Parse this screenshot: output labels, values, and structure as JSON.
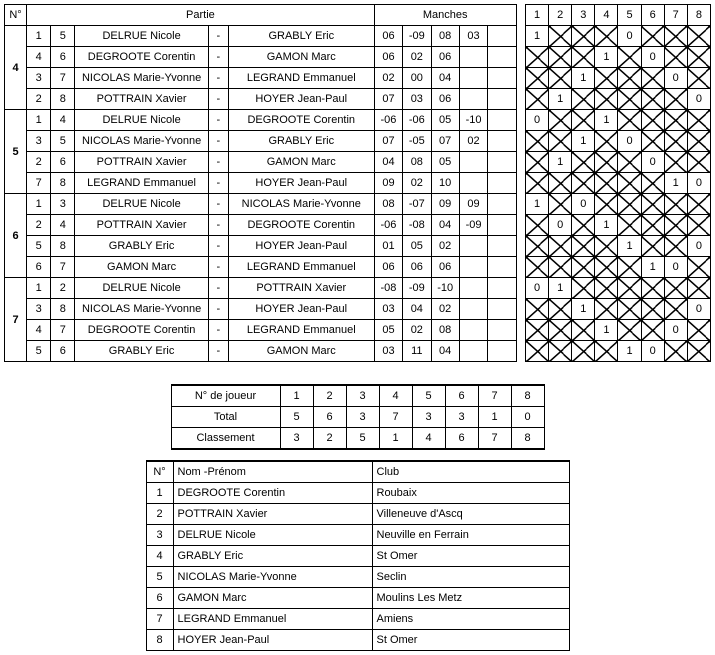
{
  "headers": {
    "n": "N°",
    "partie": "Partie",
    "manches": "Manches",
    "score_cols": [
      "1",
      "2",
      "3",
      "4",
      "5",
      "6",
      "7",
      "8"
    ],
    "summary_player_no": "N° de joueur",
    "summary_total": "Total",
    "summary_rank": "Classement",
    "roster_n": "N°",
    "roster_name": "Nom -Prénom",
    "roster_club": "Club"
  },
  "groups": [
    {
      "num": "4",
      "rows": [
        {
          "p1n": "1",
          "p2n": "5",
          "p1": "DELRUE Nicole",
          "p2": "GRABLY Eric",
          "manches": [
            "06",
            "-09",
            "08",
            "03",
            ""
          ],
          "scores": [
            "1",
            "X",
            "X",
            "X",
            "0",
            "X",
            "X",
            "X"
          ]
        },
        {
          "p1n": "4",
          "p2n": "6",
          "p1": "DEGROOTE Corentin",
          "p2": "GAMON Marc",
          "manches": [
            "06",
            "02",
            "06",
            "",
            ""
          ],
          "scores": [
            "X",
            "X",
            "X",
            "1",
            "X",
            "0",
            "X",
            "X"
          ]
        },
        {
          "p1n": "3",
          "p2n": "7",
          "p1": "NICOLAS Marie-Yvonne",
          "p2": "LEGRAND Emmanuel",
          "manches": [
            "02",
            "00",
            "04",
            "",
            ""
          ],
          "scores": [
            "X",
            "X",
            "1",
            "X",
            "X",
            "X",
            "0",
            "X"
          ]
        },
        {
          "p1n": "2",
          "p2n": "8",
          "p1": "POTTRAIN Xavier",
          "p2": "HOYER Jean-Paul",
          "manches": [
            "07",
            "03",
            "06",
            "",
            ""
          ],
          "scores": [
            "X",
            "1",
            "X",
            "X",
            "X",
            "X",
            "X",
            "0"
          ]
        }
      ]
    },
    {
      "num": "5",
      "rows": [
        {
          "p1n": "1",
          "p2n": "4",
          "p1": "DELRUE Nicole",
          "p2": "DEGROOTE Corentin",
          "manches": [
            "-06",
            "-06",
            "05",
            "-10",
            ""
          ],
          "scores": [
            "0",
            "X",
            "X",
            "1",
            "X",
            "X",
            "X",
            "X"
          ]
        },
        {
          "p1n": "3",
          "p2n": "5",
          "p1": "NICOLAS Marie-Yvonne",
          "p2": "GRABLY Eric",
          "manches": [
            "07",
            "-05",
            "07",
            "02",
            ""
          ],
          "scores": [
            "X",
            "X",
            "1",
            "X",
            "0",
            "X",
            "X",
            "X"
          ]
        },
        {
          "p1n": "2",
          "p2n": "6",
          "p1": "POTTRAIN Xavier",
          "p2": "GAMON Marc",
          "manches": [
            "04",
            "08",
            "05",
            "",
            ""
          ],
          "scores": [
            "X",
            "1",
            "X",
            "X",
            "X",
            "0",
            "X",
            "X"
          ]
        },
        {
          "p1n": "7",
          "p2n": "8",
          "p1": "LEGRAND Emmanuel",
          "p2": "HOYER Jean-Paul",
          "manches": [
            "09",
            "02",
            "10",
            "",
            ""
          ],
          "scores": [
            "X",
            "X",
            "X",
            "X",
            "X",
            "X",
            "1",
            "0"
          ]
        }
      ]
    },
    {
      "num": "6",
      "rows": [
        {
          "p1n": "1",
          "p2n": "3",
          "p1": "DELRUE Nicole",
          "p2": "NICOLAS Marie-Yvonne",
          "manches": [
            "08",
            "-07",
            "09",
            "09",
            ""
          ],
          "scores": [
            "1",
            "X",
            "0",
            "X",
            "X",
            "X",
            "X",
            "X"
          ]
        },
        {
          "p1n": "2",
          "p2n": "4",
          "p1": "POTTRAIN Xavier",
          "p2": "DEGROOTE Corentin",
          "manches": [
            "-06",
            "-08",
            "04",
            "-09",
            ""
          ],
          "scores": [
            "X",
            "0",
            "X",
            "1",
            "X",
            "X",
            "X",
            "X"
          ]
        },
        {
          "p1n": "5",
          "p2n": "8",
          "p1": "GRABLY Eric",
          "p2": "HOYER Jean-Paul",
          "manches": [
            "01",
            "05",
            "02",
            "",
            ""
          ],
          "scores": [
            "X",
            "X",
            "X",
            "X",
            "1",
            "X",
            "X",
            "0"
          ]
        },
        {
          "p1n": "6",
          "p2n": "7",
          "p1": "GAMON Marc",
          "p2": "LEGRAND Emmanuel",
          "manches": [
            "06",
            "06",
            "06",
            "",
            ""
          ],
          "scores": [
            "X",
            "X",
            "X",
            "X",
            "X",
            "1",
            "0",
            "X"
          ]
        }
      ]
    },
    {
      "num": "7",
      "rows": [
        {
          "p1n": "1",
          "p2n": "2",
          "p1": "DELRUE Nicole",
          "p2": "POTTRAIN Xavier",
          "manches": [
            "-08",
            "-09",
            "-10",
            "",
            ""
          ],
          "scores": [
            "0",
            "1",
            "X",
            "X",
            "X",
            "X",
            "X",
            "X"
          ]
        },
        {
          "p1n": "3",
          "p2n": "8",
          "p1": "NICOLAS Marie-Yvonne",
          "p2": "HOYER Jean-Paul",
          "manches": [
            "03",
            "04",
            "02",
            "",
            ""
          ],
          "scores": [
            "X",
            "X",
            "1",
            "X",
            "X",
            "X",
            "X",
            "0"
          ]
        },
        {
          "p1n": "4",
          "p2n": "7",
          "p1": "DEGROOTE Corentin",
          "p2": "LEGRAND Emmanuel",
          "manches": [
            "05",
            "02",
            "08",
            "",
            ""
          ],
          "scores": [
            "X",
            "X",
            "X",
            "1",
            "X",
            "X",
            "0",
            "X"
          ]
        },
        {
          "p1n": "5",
          "p2n": "6",
          "p1": "GRABLY Eric",
          "p2": "GAMON Marc",
          "manches": [
            "03",
            "11",
            "04",
            "",
            ""
          ],
          "scores": [
            "X",
            "X",
            "X",
            "X",
            "1",
            "0",
            "X",
            "X"
          ]
        }
      ]
    }
  ],
  "summary1": {
    "player_no": [
      "1",
      "2",
      "3",
      "4",
      "5",
      "6",
      "7",
      "8"
    ],
    "total": [
      "5",
      "6",
      "3",
      "7",
      "3",
      "3",
      "1",
      "0"
    ],
    "rank": [
      "3",
      "2",
      "5",
      "1",
      "4",
      "6",
      "7",
      "8"
    ]
  },
  "roster": [
    {
      "n": "1",
      "name": "DEGROOTE Corentin",
      "club": "Roubaix"
    },
    {
      "n": "2",
      "name": "POTTRAIN Xavier",
      "club": "Villeneuve d'Ascq"
    },
    {
      "n": "3",
      "name": "DELRUE Nicole",
      "club": "Neuville en Ferrain"
    },
    {
      "n": "4",
      "name": "GRABLY Eric",
      "club": "St Omer"
    },
    {
      "n": "5",
      "name": "NICOLAS Marie-Yvonne",
      "club": "Seclin"
    },
    {
      "n": "6",
      "name": "GAMON Marc",
      "club": "Moulins Les Metz"
    },
    {
      "n": "7",
      "name": "LEGRAND Emmanuel",
      "club": "Amiens"
    },
    {
      "n": "8",
      "name": "HOYER Jean-Paul",
      "club": "St Omer"
    }
  ]
}
